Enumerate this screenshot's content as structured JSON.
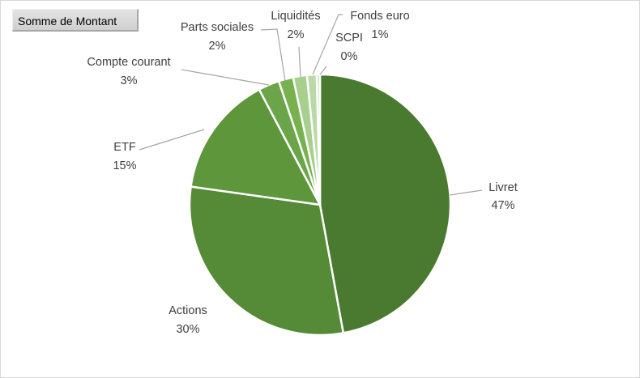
{
  "pivot": {
    "field_button_label": "Somme de Montant"
  },
  "chart_data": {
    "type": "pie",
    "title": "",
    "slices": [
      {
        "name": "Livret",
        "value": 47,
        "label_value": "47%",
        "color": "#4a7a30"
      },
      {
        "name": "Actions",
        "value": 30,
        "label_value": "30%",
        "color": "#558a36"
      },
      {
        "name": "ETF",
        "value": 15,
        "label_value": "15%",
        "color": "#5e963c"
      },
      {
        "name": "Compte courant",
        "value": 2.6,
        "label_value": "3%",
        "color": "#6aa549"
      },
      {
        "name": "Parts sociales",
        "value": 1.8,
        "label_value": "2%",
        "color": "#77b24f"
      },
      {
        "name": "Liquidités",
        "value": 1.7,
        "label_value": "2%",
        "color": "#a7cf8e"
      },
      {
        "name": "Fonds euro",
        "value": 1.2,
        "label_value": "1%",
        "color": "#b9d9a6"
      },
      {
        "name": "SCPI",
        "value": 0.4,
        "label_value": "0%",
        "color": "#c9e2bb"
      }
    ],
    "legend": "none",
    "data_labels": "category name and percentage"
  }
}
